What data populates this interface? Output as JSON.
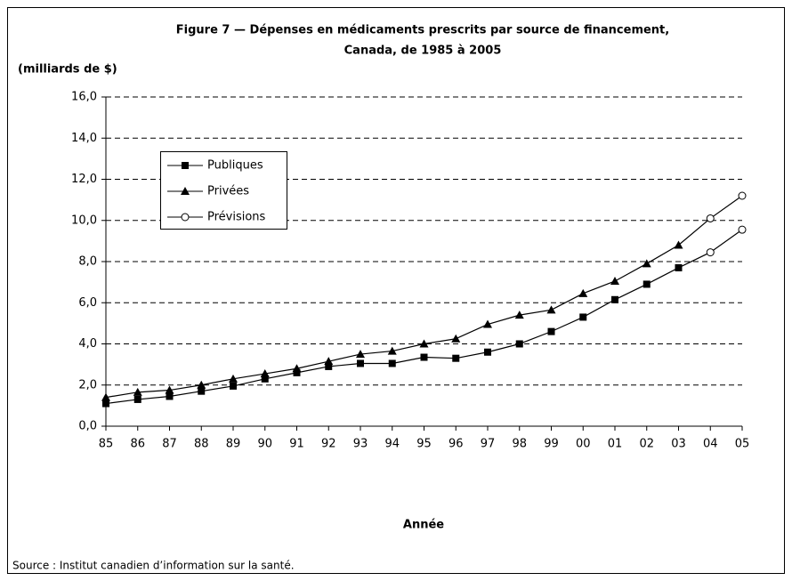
{
  "chart_data": {
    "type": "line",
    "title": [
      "Figure 7 — Dépenses en médicaments prescrits par source de financement,",
      "Canada, de 1985 à 2005"
    ],
    "y_label": "(milliards de $)",
    "x_label": "Année",
    "source": "Source : Institut canadien d’information sur la santé.",
    "categories": [
      "85",
      "86",
      "87",
      "88",
      "89",
      "90",
      "91",
      "92",
      "93",
      "94",
      "95",
      "96",
      "97",
      "98",
      "99",
      "00",
      "01",
      "02",
      "03",
      "04",
      "05"
    ],
    "series": [
      {
        "name": "Publiques",
        "color": "#000000",
        "marker": "square",
        "values": [
          1.1,
          1.3,
          1.45,
          1.7,
          1.95,
          2.3,
          2.6,
          2.9,
          3.05,
          3.05,
          3.35,
          3.3,
          3.6,
          4.0,
          4.6,
          5.3,
          6.15,
          6.9,
          7.7,
          8.45,
          9.55
        ]
      },
      {
        "name": "Privées",
        "color": "#000000",
        "marker": "triangle",
        "values": [
          1.4,
          1.65,
          1.75,
          2.0,
          2.3,
          2.55,
          2.8,
          3.15,
          3.5,
          3.65,
          4.0,
          4.25,
          4.95,
          5.4,
          5.65,
          6.45,
          7.05,
          7.9,
          8.8,
          10.1,
          11.2
        ]
      }
    ],
    "forecast": {
      "name": "Prévisions",
      "marker": "circle",
      "categories": [
        "04",
        "05"
      ]
    },
    "ylim": [
      0,
      16
    ],
    "yticks": [
      {
        "value": 0,
        "label": "0,0"
      },
      {
        "value": 2,
        "label": "2,0"
      },
      {
        "value": 4,
        "label": "4,0"
      },
      {
        "value": 6,
        "label": "6,0"
      },
      {
        "value": 8,
        "label": "8,0"
      },
      {
        "value": 10,
        "label": "10,0"
      },
      {
        "value": 12,
        "label": "12,0"
      },
      {
        "value": 14,
        "label": "14,0"
      },
      {
        "value": 16,
        "label": "16,0"
      }
    ],
    "grid": true,
    "legend": "upper left"
  }
}
